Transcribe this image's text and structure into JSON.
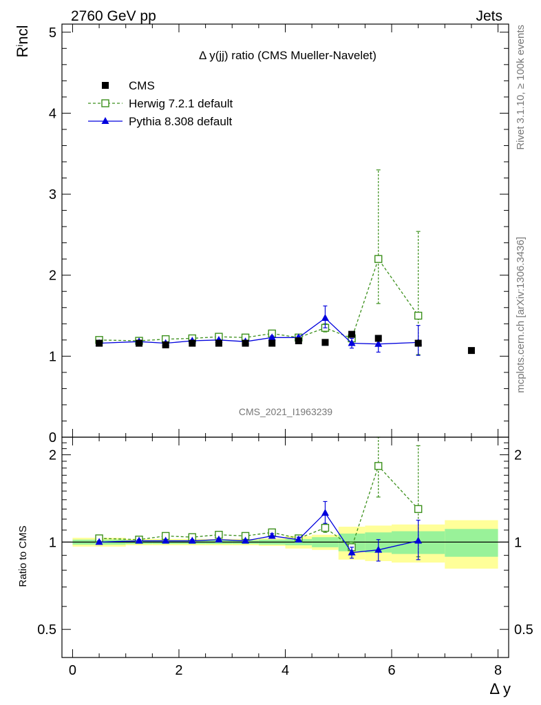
{
  "header": {
    "left": "2760 GeV pp",
    "right": "Jets"
  },
  "side_labels": {
    "rivet": "Rivet 3.1.10, ≥ 100k events",
    "mcplots": "mcplots.cern.ch [arXiv:1306.3436]"
  },
  "watermark": "CMS_2021_I1963239",
  "chart_data": [
    {
      "type": "scatter",
      "panel": "main",
      "title": "Δ y(jj) ratio (CMS Mueller-Navelet)",
      "ylabel": "R^i_ncl",
      "xlabel": "Δ y",
      "xlim": [
        -0.2,
        8.2
      ],
      "ylim": [
        0,
        5.1
      ],
      "x_ticks": [
        0,
        2,
        4,
        6,
        8
      ],
      "y_ticks": [
        1,
        2,
        3,
        4,
        5
      ],
      "y_ticks_extra": [
        0
      ],
      "legend_position": "top-left",
      "series": [
        {
          "name": "CMS",
          "marker": "filled-square",
          "color": "#000000",
          "x": [
            0.5,
            1.25,
            1.75,
            2.25,
            2.75,
            3.25,
            3.75,
            4.25,
            4.75,
            5.25,
            5.75,
            6.5,
            7.5
          ],
          "y": [
            1.16,
            1.16,
            1.14,
            1.16,
            1.16,
            1.16,
            1.16,
            1.19,
            1.17,
            1.27,
            1.22,
            1.16,
            1.07
          ]
        },
        {
          "name": "Herwig 7.2.1 default",
          "marker": "open-square",
          "line": "dashed",
          "color": "#3a8f1a",
          "x": [
            0.5,
            1.25,
            1.75,
            2.25,
            2.75,
            3.25,
            3.75,
            4.25,
            4.75,
            5.25,
            5.75,
            6.5
          ],
          "y": [
            1.2,
            1.19,
            1.21,
            1.22,
            1.24,
            1.23,
            1.28,
            1.23,
            1.35,
            1.22,
            2.2,
            1.5
          ],
          "err_low": [
            0.01,
            0.01,
            0.01,
            0.01,
            0.01,
            0.01,
            0.02,
            0.02,
            0.05,
            0.05,
            0.55,
            0.48
          ],
          "err_high": [
            0.01,
            0.01,
            0.01,
            0.01,
            0.01,
            0.01,
            0.02,
            0.02,
            0.05,
            0.05,
            1.1,
            1.04
          ]
        },
        {
          "name": "Pythia 8.308 default",
          "marker": "filled-triangle",
          "line": "solid",
          "color": "#0000dd",
          "x": [
            0.5,
            1.25,
            1.75,
            2.25,
            2.75,
            3.25,
            3.75,
            4.25,
            4.75,
            5.25,
            5.75,
            6.5
          ],
          "y": [
            1.16,
            1.18,
            1.16,
            1.19,
            1.2,
            1.18,
            1.23,
            1.23,
            1.47,
            1.16,
            1.15,
            1.17
          ],
          "err_low": [
            0.01,
            0.01,
            0.01,
            0.01,
            0.01,
            0.01,
            0.02,
            0.02,
            0.12,
            0.06,
            0.1,
            0.16
          ],
          "err_high": [
            0.01,
            0.01,
            0.01,
            0.01,
            0.01,
            0.01,
            0.02,
            0.02,
            0.15,
            0.06,
            0.1,
            0.21
          ]
        }
      ]
    },
    {
      "type": "scatter",
      "panel": "ratio",
      "ylabel": "Ratio to CMS",
      "xlabel": "Δ y",
      "xlim": [
        -0.2,
        8.2
      ],
      "ylim": [
        0.4,
        2.3
      ],
      "y_ticks": [
        0.5,
        1,
        2
      ],
      "x_ticks": [
        0,
        2,
        4,
        6,
        8
      ],
      "bands": {
        "x_edges": [
          0,
          1,
          1.5,
          2,
          2.5,
          3,
          3.5,
          4,
          4.5,
          5,
          5.5,
          6,
          7,
          8
        ],
        "inner": [
          0.02,
          0.015,
          0.015,
          0.015,
          0.015,
          0.015,
          0.02,
          0.025,
          0.04,
          0.07,
          0.08,
          0.09,
          0.11
        ],
        "outer": [
          0.035,
          0.025,
          0.025,
          0.025,
          0.025,
          0.025,
          0.03,
          0.05,
          0.06,
          0.13,
          0.14,
          0.15,
          0.19
        ],
        "inner_color": "#99f299",
        "outer_color": "#ffff99"
      },
      "series": [
        {
          "name": "Herwig 7.2.1 default",
          "marker": "open-square",
          "line": "dashed",
          "color": "#3a8f1a",
          "x": [
            0.5,
            1.25,
            1.75,
            2.25,
            2.75,
            3.25,
            3.75,
            4.25,
            4.75,
            5.25,
            5.75,
            6.5
          ],
          "y": [
            1.03,
            1.02,
            1.05,
            1.04,
            1.06,
            1.05,
            1.08,
            1.03,
            1.12,
            0.96,
            1.83,
            1.3
          ],
          "err_low": [
            0.01,
            0.01,
            0.01,
            0.01,
            0.01,
            0.01,
            0.02,
            0.02,
            0.04,
            0.04,
            0.4,
            0.41
          ],
          "err_high": [
            0.01,
            0.01,
            0.01,
            0.01,
            0.01,
            0.01,
            0.02,
            0.02,
            0.04,
            0.04,
            0.47,
            0.85
          ]
        },
        {
          "name": "Pythia 8.308 default",
          "marker": "filled-triangle",
          "line": "solid",
          "color": "#0000dd",
          "x": [
            0.5,
            1.25,
            1.75,
            2.25,
            2.75,
            3.25,
            3.75,
            4.25,
            4.75,
            5.25,
            5.75,
            6.5
          ],
          "y": [
            1.0,
            1.01,
            1.01,
            1.01,
            1.02,
            1.01,
            1.05,
            1.02,
            1.26,
            0.92,
            0.94,
            1.01
          ],
          "err_low": [
            0.01,
            0.01,
            0.01,
            0.01,
            0.01,
            0.01,
            0.02,
            0.02,
            0.1,
            0.04,
            0.08,
            0.14
          ],
          "err_high": [
            0.01,
            0.01,
            0.01,
            0.01,
            0.01,
            0.01,
            0.02,
            0.02,
            0.12,
            0.04,
            0.08,
            0.18
          ]
        }
      ]
    }
  ]
}
